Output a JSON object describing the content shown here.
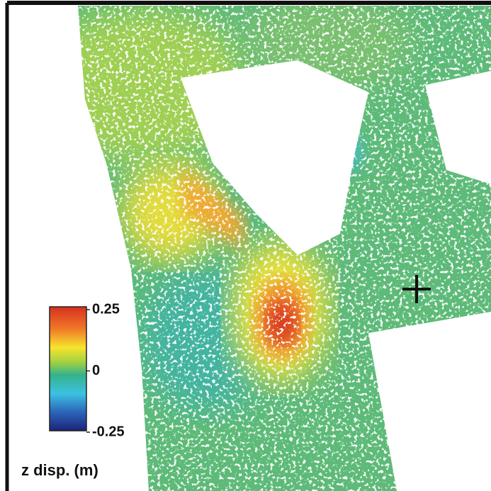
{
  "colorbar": {
    "label": "z disp. (m)",
    "lim": [
      -0.25,
      0.25
    ],
    "ticks": [
      0.25,
      0,
      -0.25
    ]
  }
}
